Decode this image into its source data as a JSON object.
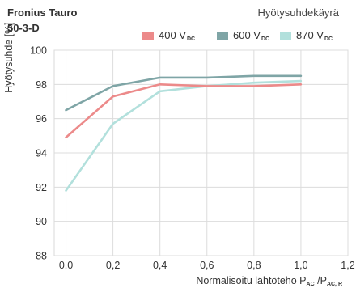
{
  "header": {
    "product": "Fronius Tauro",
    "product_line2": "50-3-D",
    "chart_type": "Hyötysuhdekäyrä"
  },
  "legend": [
    {
      "label": "400 V",
      "sub": "DC",
      "color": "#ec8a8a"
    },
    {
      "label": "600 V",
      "sub": "DC",
      "color": "#7fa5a6"
    },
    {
      "label": "870 V",
      "sub": "DC",
      "color": "#b2e0dc"
    }
  ],
  "axes": {
    "ylabel": "Hyötysuhde [%]",
    "xlabel_main": "Normalisoitu lähtöteho P",
    "xlabel_sub1": "AC",
    "xlabel_mid": " /P",
    "xlabel_sub2": "AC, R"
  },
  "chart_data": {
    "type": "line",
    "x": [
      0.0,
      0.2,
      0.4,
      0.6,
      0.8,
      1.0
    ],
    "xlim": [
      -0.05,
      1.2
    ],
    "ylim": [
      88,
      100
    ],
    "xticks": [
      "0,0",
      "0,2",
      "0,4",
      "0,6",
      "0,8",
      "1,0",
      "1,2"
    ],
    "xtick_values": [
      0.0,
      0.2,
      0.4,
      0.6,
      0.8,
      1.0,
      1.2
    ],
    "yticks": [
      "88",
      "90",
      "92",
      "94",
      "96",
      "98",
      "100"
    ],
    "ytick_values": [
      88,
      90,
      92,
      94,
      96,
      98,
      100
    ],
    "grid": true,
    "series": [
      {
        "name": "400 VDC",
        "color": "#ec8a8a",
        "values": [
          94.9,
          97.3,
          98.0,
          97.9,
          97.9,
          98.0
        ]
      },
      {
        "name": "600 VDC",
        "color": "#7fa5a6",
        "values": [
          96.5,
          97.9,
          98.4,
          98.4,
          98.5,
          98.5
        ]
      },
      {
        "name": "870 VDC",
        "color": "#b2e0dc",
        "values": [
          91.8,
          95.7,
          97.6,
          97.9,
          98.1,
          98.2
        ]
      }
    ]
  }
}
